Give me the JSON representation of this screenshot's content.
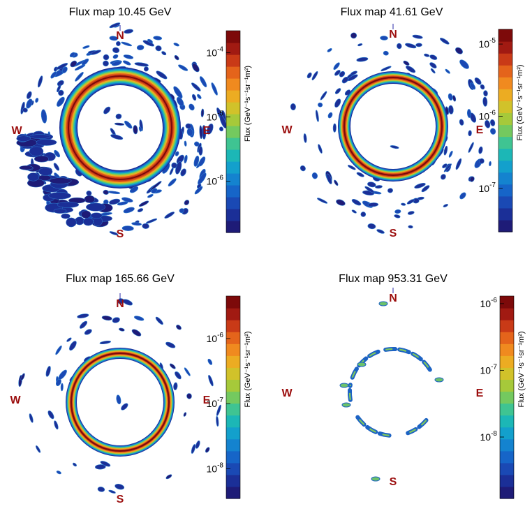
{
  "chart_data": [
    {
      "type": "heatmap",
      "title": "Flux map 10.45 GeV",
      "colorbar_label": "Flux (GeV⁻¹s⁻¹sr⁻¹m²)",
      "colorbar_ticks": [
        {
          "value": 0.0001,
          "label": "10",
          "exp": "-4"
        },
        {
          "value": 1e-05,
          "label": "10",
          "exp": "-5"
        },
        {
          "value": 1e-06,
          "label": "10",
          "exp": "-6"
        }
      ],
      "colorbar_range": [
        1.6e-07,
        0.00022
      ],
      "colorbar_log": true,
      "compass": {
        "N": "N",
        "S": "S",
        "E": "E",
        "W": "W"
      },
      "ring_peak_flux": 0.0002,
      "ring_radius_fraction": 0.49
    },
    {
      "type": "heatmap",
      "title": "Flux map 41.61 GeV",
      "colorbar_label": "Flux (GeV⁻¹s⁻¹sr⁻¹m²)",
      "colorbar_ticks": [
        {
          "value": 1e-05,
          "label": "10",
          "exp": "-5"
        },
        {
          "value": 1e-06,
          "label": "10",
          "exp": "-6"
        },
        {
          "value": 1e-07,
          "label": "10",
          "exp": "-7"
        }
      ],
      "colorbar_range": [
        2.5e-08,
        1.6e-05
      ],
      "colorbar_log": true,
      "compass": {
        "N": "N",
        "S": "S",
        "E": "E",
        "W": "W"
      },
      "ring_peak_flux": 1.5e-05,
      "ring_radius_fraction": 0.47
    },
    {
      "type": "heatmap",
      "title": "Flux map 165.66 GeV",
      "colorbar_label": "Flux (GeV⁻¹s⁻¹sr⁻¹m²)",
      "colorbar_ticks": [
        {
          "value": 1e-06,
          "label": "10",
          "exp": "-6"
        },
        {
          "value": 1e-07,
          "label": "10",
          "exp": "-7"
        },
        {
          "value": 1e-08,
          "label": "10",
          "exp": "-8"
        }
      ],
      "colorbar_range": [
        3.5e-09,
        4.5e-06
      ],
      "colorbar_log": true,
      "compass": {
        "N": "N",
        "S": "S",
        "E": "E",
        "W": "W"
      },
      "ring_peak_flux": 4e-06,
      "ring_radius_fraction": 0.46
    },
    {
      "type": "heatmap",
      "title": "Flux map 953.31 GeV",
      "colorbar_label": "Flux (GeV⁻¹s⁻¹sr⁻¹m²)",
      "colorbar_ticks": [
        {
          "value": 1e-06,
          "label": "10",
          "exp": "-6"
        },
        {
          "value": 1e-07,
          "label": "10",
          "exp": "-7"
        },
        {
          "value": 1e-08,
          "label": "10",
          "exp": "-8"
        }
      ],
      "colorbar_range": [
        1.2e-09,
        1.3e-06
      ],
      "colorbar_log": true,
      "compass": {
        "N": "N",
        "S": "S",
        "E": "E",
        "W": "W"
      },
      "ring_peak_flux": 1e-07,
      "ring_radius_fraction": 0.48
    }
  ]
}
